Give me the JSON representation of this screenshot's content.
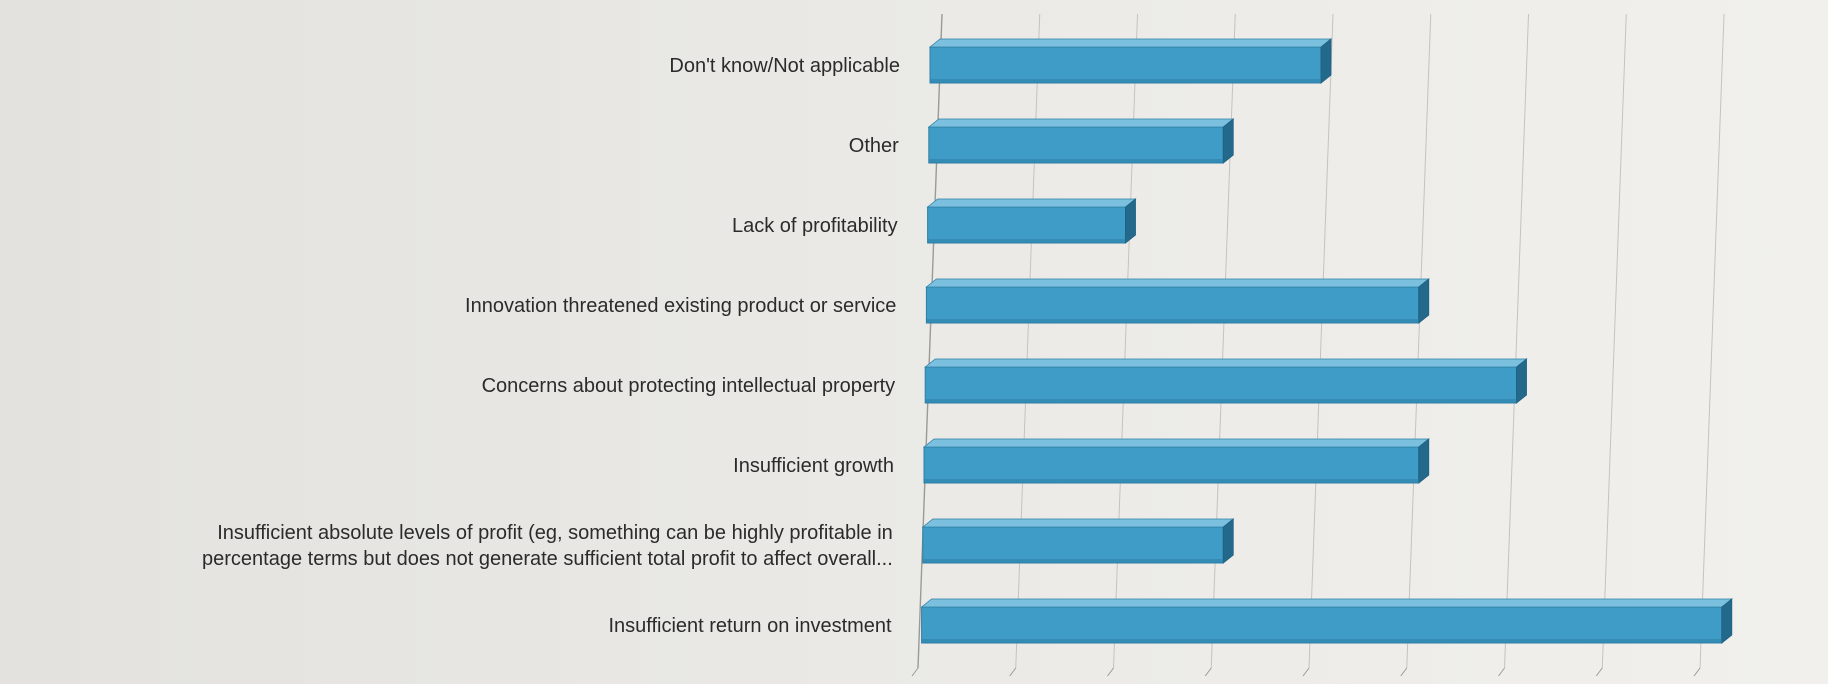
{
  "chart_data": {
    "type": "bar",
    "orientation": "horizontal",
    "style": "3d",
    "bar_color": "#3f9cc6",
    "grid": true,
    "value_axis_labels_visible": false,
    "categories": [
      "Don't know/Not applicable",
      "Other",
      "Lack of profitability",
      "Innovation threatened existing product or service",
      "Concerns about protecting intellectual property",
      "Insufficient growth",
      "Insufficient absolute levels of profit (eg, something can be highly profitable in percentage terms but does not generate sufficient total profit to affect overall...",
      "Insufficient return on investment"
    ],
    "category_lines": [
      [
        "Don't know/Not applicable"
      ],
      [
        "Other"
      ],
      [
        "Lack of profitability"
      ],
      [
        "Innovation threatened existing product or service"
      ],
      [
        "Concerns about protecting intellectual property"
      ],
      [
        "Insufficient growth"
      ],
      [
        "Insufficient absolute levels of profit (eg, something can be highly profitable in",
        "percentage terms but does not generate sufficient total profit to affect overall..."
      ],
      [
        "Insufficient return on investment"
      ]
    ],
    "values": [
      4,
      3,
      2,
      5,
      6,
      5,
      3,
      8.1
    ],
    "xlim": [
      0,
      8.9
    ]
  }
}
